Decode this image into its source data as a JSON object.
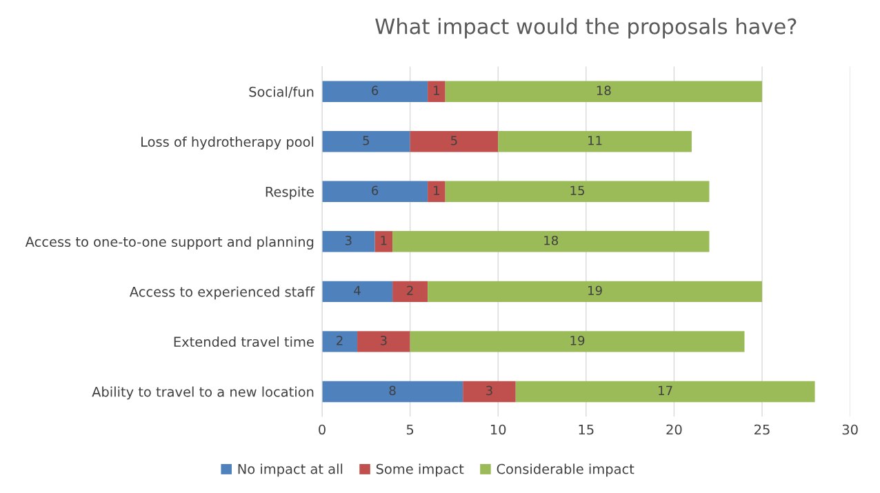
{
  "chart_data": {
    "type": "bar",
    "orientation": "horizontal",
    "stacked": true,
    "title": "What impact would the proposals have?",
    "categories": [
      "Social/fun",
      "Loss of hydrotherapy pool",
      "Respite",
      "Access to one-to-one support and planning",
      "Access to experienced staff",
      "Extended travel time",
      "Ability to travel to a new location"
    ],
    "series": [
      {
        "name": "No impact at all",
        "color": "#4f81bd",
        "values": [
          6,
          5,
          6,
          3,
          4,
          2,
          8
        ]
      },
      {
        "name": "Some impact",
        "color": "#c0504d",
        "values": [
          1,
          5,
          1,
          1,
          2,
          3,
          3
        ]
      },
      {
        "name": "Considerable impact",
        "color": "#9bbb59",
        "values": [
          18,
          11,
          15,
          18,
          19,
          19,
          17
        ]
      }
    ],
    "xlim": [
      0,
      30
    ],
    "xticks": [
      0,
      5,
      10,
      15,
      20,
      25,
      30
    ],
    "grid": "x",
    "legend": "bottom",
    "data_labels": true
  }
}
